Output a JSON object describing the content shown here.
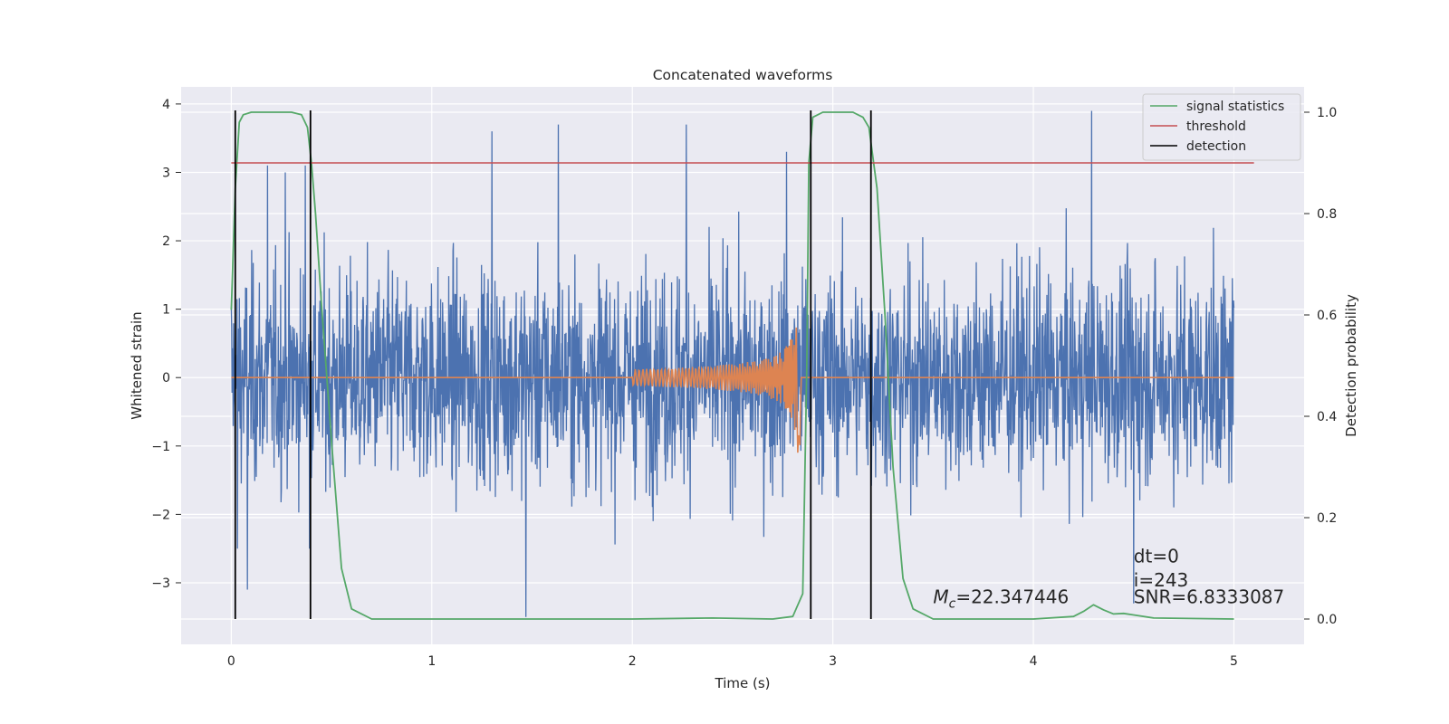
{
  "chart_data": {
    "type": "line",
    "title": "Concatenated waveforms",
    "xlabel": "Time (s)",
    "ylabel": "Whitened strain",
    "y2label": "Detection probability",
    "xlim": [
      -0.25,
      5.35
    ],
    "ylim": [
      -3.9,
      4.25
    ],
    "y2lim": [
      -0.05,
      1.05
    ],
    "x_ticks": [
      0,
      1,
      2,
      3,
      4,
      5
    ],
    "y_ticks": [
      -3,
      -2,
      -1,
      0,
      1,
      2,
      3,
      4
    ],
    "y2_ticks": [
      0.0,
      0.2,
      0.4,
      0.6,
      0.8,
      1.0
    ],
    "y2_tick_labels": [
      "0.0",
      "0.2",
      "0.4",
      "0.6",
      "0.8",
      "1.0"
    ],
    "grid": true,
    "legend_position": "top-right",
    "colors": {
      "strain": "#4c72b0",
      "template": "#dd8452",
      "signal_statistics": "#55a868",
      "threshold": "#c44e52",
      "detection": "#000000",
      "background": "#eaeaf2"
    },
    "series": [
      {
        "key": "strain",
        "axis": "left",
        "x_range": [
          0,
          5
        ],
        "typical_amplitude": 1.4,
        "spikes": [
          {
            "x": 0.18,
            "y": 3.1
          },
          {
            "x": 0.27,
            "y": 3.0
          },
          {
            "x": 0.37,
            "y": 3.1
          },
          {
            "x": 1.3,
            "y": 3.6
          },
          {
            "x": 1.63,
            "y": 3.7
          },
          {
            "x": 2.27,
            "y": 3.7
          },
          {
            "x": 2.77,
            "y": 3.3
          },
          {
            "x": 4.29,
            "y": 3.9
          },
          {
            "x": 0.03,
            "y": -2.5
          },
          {
            "x": 0.08,
            "y": -3.1
          },
          {
            "x": 0.39,
            "y": -2.5
          },
          {
            "x": 1.47,
            "y": -3.5
          },
          {
            "x": 4.5,
            "y": -3.3
          }
        ]
      },
      {
        "key": "template",
        "axis": "left",
        "x_range": [
          0,
          5
        ],
        "chirp_start": 2.0,
        "chirp_end": 2.84,
        "peak_amplitude": 1.2
      },
      {
        "key": "signal_statistics",
        "name": "signal statistics",
        "axis": "right",
        "x": [
          0.0,
          0.02,
          0.04,
          0.06,
          0.1,
          0.15,
          0.3,
          0.35,
          0.38,
          0.4,
          0.42,
          0.45,
          0.5,
          0.55,
          0.6,
          0.7,
          1.0,
          2.0,
          2.4,
          2.7,
          2.8,
          2.85,
          2.87,
          2.88,
          2.9,
          2.95,
          3.0,
          3.1,
          3.15,
          3.18,
          3.22,
          3.26,
          3.3,
          3.35,
          3.4,
          3.5,
          4.0,
          4.2,
          4.25,
          4.3,
          4.35,
          4.4,
          4.45,
          4.5,
          4.6,
          5.0
        ],
        "y": [
          0.61,
          0.85,
          0.98,
          0.995,
          1.0,
          1.0,
          1.0,
          0.995,
          0.97,
          0.9,
          0.8,
          0.62,
          0.35,
          0.1,
          0.02,
          0.0,
          0.0,
          0.0,
          0.002,
          0.0,
          0.005,
          0.05,
          0.5,
          0.9,
          0.99,
          1.0,
          1.0,
          1.0,
          0.99,
          0.97,
          0.85,
          0.6,
          0.3,
          0.08,
          0.02,
          0.0,
          0.0,
          0.005,
          0.015,
          0.028,
          0.018,
          0.01,
          0.011,
          0.008,
          0.002,
          0.0
        ]
      },
      {
        "key": "threshold",
        "name": "threshold",
        "axis": "right",
        "x": [
          0.0,
          5.1
        ],
        "y": [
          0.9,
          0.9
        ]
      },
      {
        "key": "detection",
        "name": "detection",
        "axis": "right",
        "x_positions": [
          0.02,
          0.395,
          2.89,
          3.19
        ]
      }
    ],
    "annotations": [
      {
        "key": "mc",
        "x": 3.5,
        "y": -3.3,
        "symbol": "M",
        "sub": "c",
        "value": "=22.347446"
      },
      {
        "key": "dt",
        "x": 4.5,
        "y": -2.7,
        "text": "dt=0"
      },
      {
        "key": "i",
        "x": 4.5,
        "y": -3.05,
        "text": "i=243"
      },
      {
        "key": "snr",
        "x": 4.5,
        "y": -3.3,
        "text": "SNR=6.8333087"
      }
    ]
  }
}
